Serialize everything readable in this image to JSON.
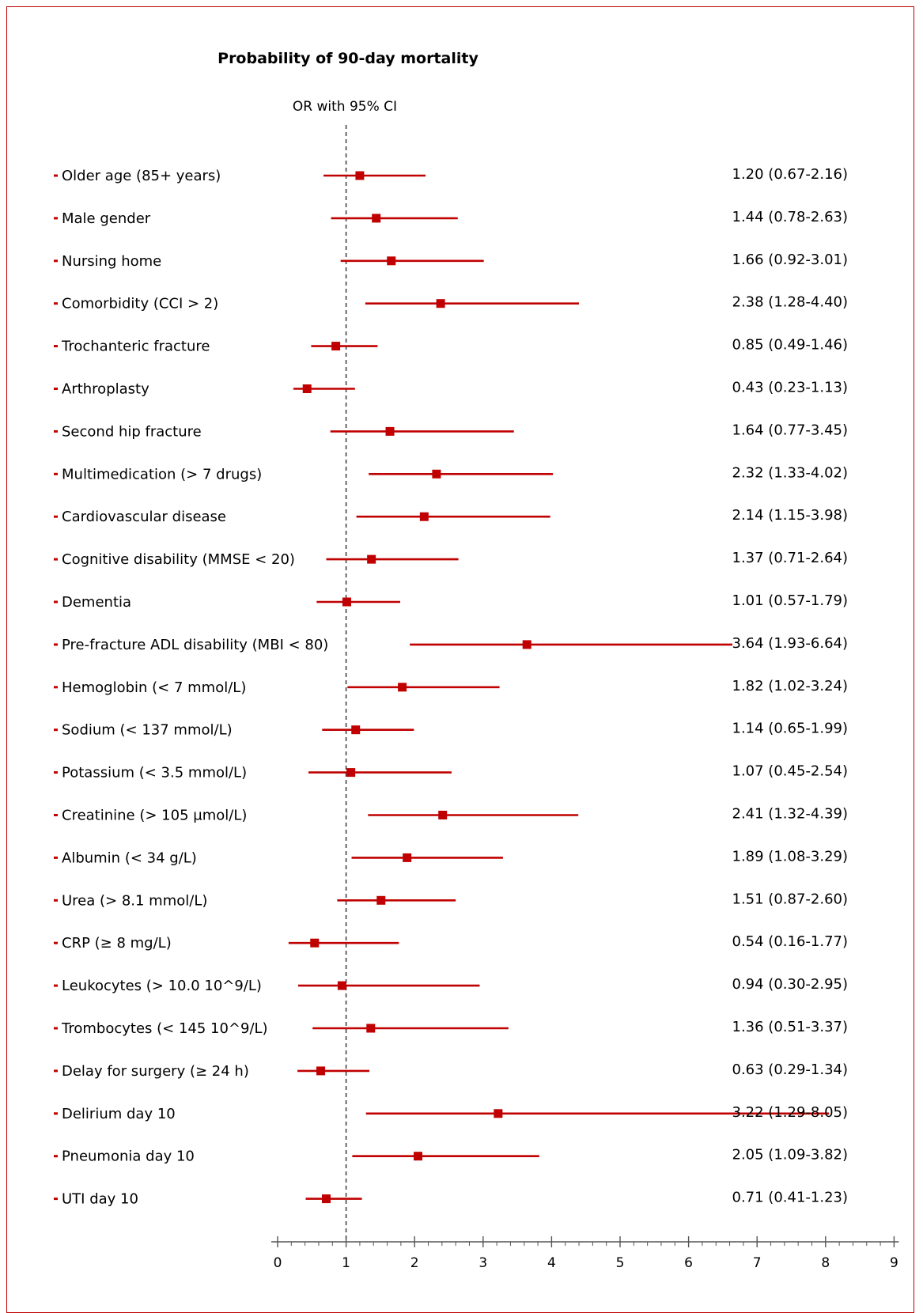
{
  "chart_data": {
    "type": "forest",
    "title": "Probability of 90-day mortality",
    "subtitle": "OR with 95% CI",
    "reference_line": 1,
    "xlim": [
      0,
      9
    ],
    "x_ticks": [
      0,
      1,
      2,
      3,
      4,
      5,
      6,
      7,
      8,
      9
    ],
    "colors": {
      "series": "#c00000",
      "frame": "#c00000",
      "axis": "#555555",
      "reference": "#444444"
    },
    "rows": [
      {
        "label": "Older age (85+ years)",
        "or": 1.2,
        "lo": 0.67,
        "hi": 2.16,
        "text": "1.20 (0.67-2.16)"
      },
      {
        "label": "Male gender",
        "or": 1.44,
        "lo": 0.78,
        "hi": 2.63,
        "text": "1.44 (0.78-2.63)"
      },
      {
        "label": "Nursing home",
        "or": 1.66,
        "lo": 0.92,
        "hi": 3.01,
        "text": "1.66 (0.92-3.01)"
      },
      {
        "label": "Comorbidity (CCI > 2)",
        "or": 2.38,
        "lo": 1.28,
        "hi": 4.4,
        "text": "2.38 (1.28-4.40)"
      },
      {
        "label": "Trochanteric fracture",
        "or": 0.85,
        "lo": 0.49,
        "hi": 1.46,
        "text": "0.85 (0.49-1.46)"
      },
      {
        "label": "Arthroplasty",
        "or": 0.43,
        "lo": 0.23,
        "hi": 1.13,
        "text": "0.43 (0.23-1.13)"
      },
      {
        "label": "Second hip fracture",
        "or": 1.64,
        "lo": 0.77,
        "hi": 3.45,
        "text": "1.64 (0.77-3.45)"
      },
      {
        "label": "Multimedication (> 7 drugs)",
        "or": 2.32,
        "lo": 1.33,
        "hi": 4.02,
        "text": "2.32 (1.33-4.02)"
      },
      {
        "label": "Cardiovascular disease",
        "or": 2.14,
        "lo": 1.15,
        "hi": 3.98,
        "text": "2.14 (1.15-3.98)"
      },
      {
        "label": "Cognitive disability (MMSE < 20)",
        "or": 1.37,
        "lo": 0.71,
        "hi": 2.64,
        "text": "1.37 (0.71-2.64)"
      },
      {
        "label": "Dementia",
        "or": 1.01,
        "lo": 0.57,
        "hi": 1.79,
        "text": "1.01 (0.57-1.79)"
      },
      {
        "label": "Pre-fracture ADL disability (MBI < 80)",
        "or": 3.64,
        "lo": 1.93,
        "hi": 6.64,
        "text": "3.64 (1.93-6.64)"
      },
      {
        "label": "Hemoglobin (< 7 mmol/L)",
        "or": 1.82,
        "lo": 1.02,
        "hi": 3.24,
        "text": "1.82 (1.02-3.24)"
      },
      {
        "label": "Sodium (< 137 mmol/L)",
        "or": 1.14,
        "lo": 0.65,
        "hi": 1.99,
        "text": "1.14 (0.65-1.99)"
      },
      {
        "label": "Potassium (< 3.5 mmol/L)",
        "or": 1.07,
        "lo": 0.45,
        "hi": 2.54,
        "text": "1.07 (0.45-2.54)"
      },
      {
        "label": "Creatinine (> 105 µmol/L)",
        "or": 2.41,
        "lo": 1.32,
        "hi": 4.39,
        "text": "2.41 (1.32-4.39)"
      },
      {
        "label": "Albumin (< 34 g/L)",
        "or": 1.89,
        "lo": 1.08,
        "hi": 3.29,
        "text": "1.89 (1.08-3.29)"
      },
      {
        "label": "Urea (> 8.1 mmol/L)",
        "or": 1.51,
        "lo": 0.87,
        "hi": 2.6,
        "text": "1.51 (0.87-2.60)"
      },
      {
        "label": "CRP (≥ 8 mg/L)",
        "or": 0.54,
        "lo": 0.16,
        "hi": 1.77,
        "text": "0.54 (0.16-1.77)"
      },
      {
        "label": "Leukocytes (> 10.0 10^9/L)",
        "or": 0.94,
        "lo": 0.3,
        "hi": 2.95,
        "text": "0.94 (0.30-2.95)"
      },
      {
        "label": "Trombocytes (< 145 10^9/L)",
        "or": 1.36,
        "lo": 0.51,
        "hi": 3.37,
        "text": "1.36 (0.51-3.37)"
      },
      {
        "label": "Delay for surgery (≥ 24 h)",
        "or": 0.63,
        "lo": 0.29,
        "hi": 1.34,
        "text": "0.63 (0.29-1.34)"
      },
      {
        "label": "Delirium day 10",
        "or": 3.22,
        "lo": 1.29,
        "hi": 8.05,
        "text": "3.22 (1.29-8.05)"
      },
      {
        "label": "Pneumonia day 10",
        "or": 2.05,
        "lo": 1.09,
        "hi": 3.82,
        "text": "2.05 (1.09-3.82)"
      },
      {
        "label": "UTI day 10",
        "or": 0.71,
        "lo": 0.41,
        "hi": 1.23,
        "text": "0.71 (0.41-1.23)"
      }
    ]
  }
}
